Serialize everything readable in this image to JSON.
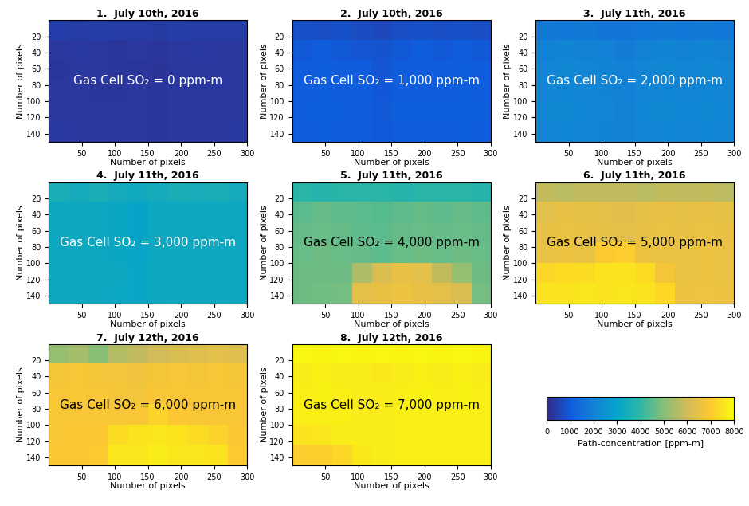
{
  "chart_data": [
    {
      "type": "heatmap",
      "title": "1.  July 10th, 2016",
      "annotation": "Gas Cell SO₂ = 0 ppm-m",
      "xlabel": "Number of pixels",
      "ylabel": "Number of pixels",
      "xlim": [
        0,
        300
      ],
      "ylim": [
        150,
        0
      ],
      "xticks": [
        50,
        100,
        150,
        200,
        250,
        300
      ],
      "yticks": [
        20,
        40,
        60,
        80,
        100,
        120,
        140
      ],
      "cells": [
        [
          450,
          400,
          420,
          380,
          400,
          350,
          420,
          400,
          380,
          400
        ],
        [
          300,
          320,
          300,
          280,
          300,
          250,
          300,
          320,
          300,
          310
        ],
        [
          280,
          300,
          290,
          270,
          280,
          240,
          290,
          300,
          290,
          300
        ],
        [
          290,
          300,
          280,
          280,
          290,
          250,
          300,
          290,
          300,
          290
        ],
        [
          300,
          310,
          300,
          290,
          300,
          260,
          300,
          310,
          300,
          300
        ],
        [
          320,
          300,
          310,
          300,
          310,
          270,
          310,
          300,
          310,
          320
        ]
      ]
    },
    {
      "type": "heatmap",
      "title": "2.  July 10th, 2016",
      "annotation": "Gas Cell SO₂ = 1,000 ppm-m",
      "xlabel": "Number of pixels",
      "ylabel": "Number of pixels",
      "xlim": [
        0,
        300
      ],
      "ylim": [
        150,
        0
      ],
      "xticks": [
        50,
        100,
        150,
        200,
        250,
        300
      ],
      "yticks": [
        20,
        40,
        60,
        80,
        100,
        120,
        140
      ],
      "cells": [
        [
          800,
          750,
          800,
          700,
          650,
          750,
          800,
          780,
          800,
          750
        ],
        [
          950,
          1000,
          950,
          900,
          850,
          950,
          1000,
          950,
          1000,
          950
        ],
        [
          1050,
          1100,
          1050,
          1000,
          900,
          1050,
          1100,
          1050,
          1100,
          1050
        ],
        [
          1050,
          1080,
          1050,
          1000,
          920,
          1050,
          1080,
          1050,
          1080,
          1050
        ],
        [
          1100,
          1100,
          1080,
          1050,
          950,
          1080,
          1100,
          1080,
          1100,
          1080
        ],
        [
          1050,
          1080,
          1050,
          1020,
          950,
          1050,
          1080,
          1050,
          1080,
          1050
        ]
      ]
    },
    {
      "type": "heatmap",
      "title": "3.  July 11th, 2016",
      "annotation": "Gas Cell SO₂ = 2,000 ppm-m",
      "xlabel": "Number of pixels",
      "ylabel": "Number of pixels",
      "xlim": [
        0,
        300
      ],
      "ylim": [
        150,
        0
      ],
      "xticks": [
        50,
        100,
        150,
        200,
        250,
        300
      ],
      "yticks": [
        20,
        40,
        60,
        80,
        100,
        120,
        140
      ],
      "cells": [
        [
          1800,
          1750,
          1800,
          1700,
          1700,
          1750,
          1800,
          1780,
          1800,
          1750
        ],
        [
          2050,
          2100,
          2050,
          2000,
          1900,
          2050,
          2100,
          2050,
          2100,
          2050
        ],
        [
          2150,
          2200,
          2150,
          2100,
          2000,
          2150,
          2200,
          2150,
          2200,
          2150
        ],
        [
          2150,
          2180,
          2150,
          2100,
          2000,
          2150,
          2180,
          2150,
          2180,
          2150
        ],
        [
          2200,
          2200,
          2180,
          2150,
          2050,
          2180,
          2200,
          2180,
          2200,
          2180
        ],
        [
          2150,
          2180,
          2150,
          2120,
          2050,
          2150,
          2180,
          2150,
          2180,
          2150
        ]
      ]
    },
    {
      "type": "heatmap",
      "title": "4.  July 11th, 2016",
      "annotation": "Gas Cell SO₂ = 3,000 ppm-m",
      "xlabel": "Number of pixels",
      "ylabel": "Number of pixels",
      "xlim": [
        0,
        300
      ],
      "ylim": [
        150,
        0
      ],
      "xticks": [
        50,
        100,
        150,
        200,
        250,
        300
      ],
      "yticks": [
        20,
        40,
        60,
        80,
        100,
        120,
        140
      ],
      "cells": [
        [
          3500,
          3400,
          3500,
          3400,
          3300,
          3400,
          3500,
          3450,
          3500,
          3400
        ],
        [
          3200,
          3250,
          3200,
          3150,
          3050,
          3200,
          3250,
          3200,
          3250,
          3200
        ],
        [
          3200,
          3250,
          3200,
          3150,
          3050,
          3200,
          3250,
          3200,
          3250,
          3200
        ],
        [
          3200,
          3220,
          3200,
          3150,
          3080,
          3200,
          3220,
          3200,
          3220,
          3200
        ],
        [
          3250,
          3250,
          3220,
          3200,
          3100,
          3220,
          3250,
          3220,
          3250,
          3220
        ],
        [
          3200,
          3220,
          3200,
          3180,
          3100,
          3200,
          3220,
          3200,
          3220,
          3200
        ]
      ]
    },
    {
      "type": "heatmap",
      "title": "5.  July 11th, 2016",
      "annotation": "Gas Cell SO₂ = 4,000 ppm-m",
      "xlabel": "Number of pixels",
      "ylabel": "Number of pixels",
      "xlim": [
        0,
        300
      ],
      "ylim": [
        150,
        0
      ],
      "xticks": [
        50,
        100,
        150,
        200,
        250,
        300
      ],
      "yticks": [
        20,
        40,
        60,
        80,
        100,
        120,
        140
      ],
      "cells": [
        [
          3900,
          3800,
          3900,
          3850,
          3900,
          3800,
          3900,
          3850,
          3900,
          3800
        ],
        [
          4500,
          4600,
          4550,
          4500,
          4450,
          4550,
          4600,
          4550,
          4600,
          4550
        ],
        [
          4600,
          4650,
          4600,
          4550,
          4500,
          4600,
          4650,
          4600,
          4650,
          4600
        ],
        [
          4650,
          4700,
          4650,
          4600,
          4550,
          4650,
          4700,
          4650,
          4700,
          4650
        ],
        [
          4700,
          4700,
          4700,
          5500,
          6200,
          6500,
          6400,
          5800,
          5200,
          4700
        ],
        [
          4700,
          4750,
          4800,
          6400,
          6500,
          6600,
          6500,
          6400,
          6200,
          4800
        ]
      ]
    },
    {
      "type": "heatmap",
      "title": "6.  July 11th, 2016",
      "annotation": "Gas Cell SO₂ = 5,000 ppm-m",
      "xlabel": "Number of pixels",
      "ylabel": "Number of pixels",
      "xlim": [
        0,
        300
      ],
      "ylim": [
        150,
        0
      ],
      "xticks": [
        50,
        100,
        150,
        200,
        250,
        300
      ],
      "yticks": [
        20,
        40,
        60,
        80,
        100,
        120,
        140
      ],
      "cells": [
        [
          5800,
          5700,
          5800,
          5750,
          5800,
          5700,
          5800,
          5750,
          5800,
          5700
        ],
        [
          6400,
          6500,
          6450,
          6400,
          6350,
          6450,
          6500,
          6450,
          6500,
          6450
        ],
        [
          6500,
          6550,
          6500,
          6450,
          6400,
          6500,
          6550,
          6500,
          6550,
          6500
        ],
        [
          6550,
          6600,
          6550,
          7000,
          7100,
          6600,
          6550,
          6550,
          6600,
          6550
        ],
        [
          7300,
          7400,
          7400,
          7500,
          7500,
          7400,
          6800,
          6550,
          6600,
          6550
        ],
        [
          7500,
          7500,
          7600,
          7500,
          7600,
          7500,
          7300,
          6600,
          6650,
          6600
        ]
      ]
    },
    {
      "type": "heatmap",
      "title": "7.  July 12th, 2016",
      "annotation": "Gas Cell SO₂ = 6,000 ppm-m",
      "xlabel": "Number of pixels",
      "ylabel": "Number of pixels",
      "xlim": [
        0,
        300
      ],
      "ylim": [
        150,
        0
      ],
      "xticks": [
        50,
        100,
        150,
        200,
        250,
        300
      ],
      "yticks": [
        20,
        40,
        60,
        80,
        100,
        120,
        140
      ],
      "cells": [
        [
          5200,
          5400,
          5000,
          5600,
          5800,
          6000,
          6200,
          6300,
          6400,
          6300
        ],
        [
          6800,
          6850,
          6800,
          6750,
          6700,
          6800,
          6850,
          6800,
          6850,
          6800
        ],
        [
          6850,
          6900,
          6850,
          6800,
          6750,
          6850,
          6900,
          6850,
          6900,
          6850
        ],
        [
          6900,
          6900,
          6900,
          6850,
          6900,
          7200,
          6950,
          6900,
          6900,
          6900
        ],
        [
          6900,
          6950,
          6950,
          7400,
          7500,
          7600,
          7500,
          7400,
          7200,
          6950
        ],
        [
          6950,
          6950,
          7000,
          7600,
          7600,
          7700,
          7600,
          7600,
          7500,
          7000
        ]
      ]
    },
    {
      "type": "heatmap",
      "title": "8.  July 12th, 2016",
      "annotation": "Gas Cell SO₂ = 7,000 ppm-m",
      "xlabel": "Number of pixels",
      "ylabel": "Number of pixels",
      "xlim": [
        0,
        300
      ],
      "ylim": [
        150,
        0
      ],
      "xticks": [
        50,
        100,
        150,
        200,
        250,
        300
      ],
      "yticks": [
        20,
        40,
        60,
        80,
        100,
        120,
        140
      ],
      "cells": [
        [
          7900,
          7850,
          7900,
          7850,
          7900,
          7850,
          7900,
          7850,
          7900,
          7850
        ],
        [
          7700,
          7750,
          7700,
          7700,
          7650,
          7700,
          7750,
          7700,
          7750,
          7700
        ],
        [
          7750,
          7800,
          7750,
          7700,
          7700,
          7750,
          7800,
          7750,
          7800,
          7750
        ],
        [
          7750,
          7750,
          7750,
          7700,
          7700,
          7750,
          7750,
          7750,
          7750,
          7750
        ],
        [
          7500,
          7600,
          7700,
          7700,
          7700,
          7750,
          7750,
          7750,
          7750,
          7750
        ],
        [
          7100,
          7150,
          7300,
          7650,
          7700,
          7750,
          7750,
          7750,
          7750,
          7750
        ]
      ]
    }
  ],
  "colorbar": {
    "label": "Path-concentration [ppm-m]",
    "range": [
      0,
      8000
    ],
    "ticks": [
      0,
      1000,
      2000,
      3000,
      4000,
      5000,
      6000,
      7000,
      8000
    ]
  }
}
